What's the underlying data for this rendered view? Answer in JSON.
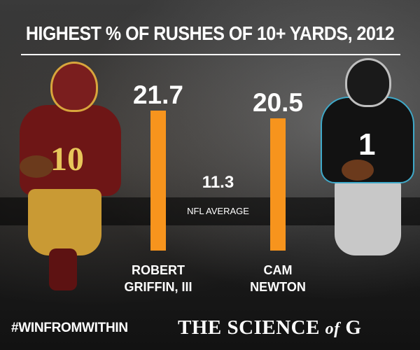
{
  "chart_data": {
    "type": "bar",
    "title": "HIGHEST % OF RUSHES OF 10+ YARDS, 2012",
    "categories": [
      "ROBERT GRIFFIN, III",
      "CAM NEWTON"
    ],
    "category_lines": [
      [
        "ROBERT",
        "GRIFFIN, III"
      ],
      [
        "CAM",
        "NEWTON"
      ]
    ],
    "values": [
      21.7,
      20.5
    ],
    "value_labels": [
      "21.7",
      "20.5"
    ],
    "reference": {
      "label": "NFL AVERAGE",
      "value": 11.3,
      "value_label": "11.3"
    },
    "ylim": [
      0,
      21.7
    ],
    "xlabel": "",
    "ylabel": "",
    "grid": false,
    "bar_color": "#f7941d"
  },
  "footer": {
    "hashtag": "#WINFROMWITHIN",
    "brand_prefix": "THE SCIENCE ",
    "brand_of": "of",
    "brand_suffix": " G"
  }
}
